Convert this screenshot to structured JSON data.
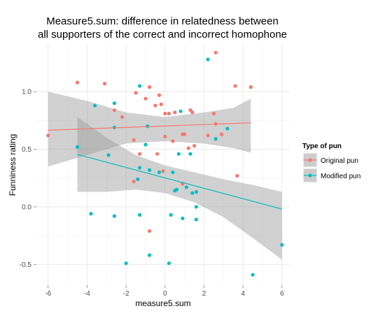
{
  "chart_data": {
    "type": "scatter",
    "title_lines": [
      "Measure5.sum: difference in relatedness between",
      "all supporters of the correct and incorrect homophone"
    ],
    "xlabel": "measure5.sum",
    "ylabel": "Funniness rating",
    "xlim": [
      -6.6,
      6.4
    ],
    "ylim": [
      -0.68,
      1.42
    ],
    "xticks": [
      -6,
      -4,
      -2,
      0,
      2,
      4,
      6
    ],
    "xtick_labels": [
      "-6",
      "-4",
      "-2",
      "0",
      "2",
      "4",
      "6"
    ],
    "yticks": [
      -0.5,
      0.0,
      0.5,
      1.0
    ],
    "ytick_labels": [
      "-0.5",
      "0.0",
      "0.5",
      "1.0"
    ],
    "grid": true,
    "legend": {
      "title": "Type of pun",
      "position": "right",
      "entries": [
        "Original pun",
        "Modified pun"
      ]
    },
    "series": [
      {
        "name": "Original pun",
        "color": "#F8766D",
        "points": [
          [
            -6.0,
            0.62
          ],
          [
            -4.5,
            1.08
          ],
          [
            -3.1,
            1.07
          ],
          [
            -2.6,
            0.84
          ],
          [
            -2.2,
            0.78
          ],
          [
            -1.6,
            0.58
          ],
          [
            -1.5,
            0.99
          ],
          [
            -1.3,
            0.46
          ],
          [
            -1.0,
            0.94
          ],
          [
            -0.8,
            1.04
          ],
          [
            -0.5,
            0.88
          ],
          [
            -0.3,
            0.97
          ],
          [
            -0.2,
            0.89
          ],
          [
            -0.4,
            0.46
          ],
          [
            0.0,
            0.61
          ],
          [
            0.2,
            0.81
          ],
          [
            0.4,
            0.57
          ],
          [
            0.5,
            0.82
          ],
          [
            0.9,
            0.63
          ],
          [
            1.0,
            0.63
          ],
          [
            1.2,
            0.51
          ],
          [
            1.3,
            0.84
          ],
          [
            1.4,
            0.82
          ],
          [
            1.5,
            0.53
          ],
          [
            2.2,
            0.62
          ],
          [
            2.5,
            0.81
          ],
          [
            2.6,
            0.72
          ],
          [
            2.9,
            0.63
          ],
          [
            3.6,
            1.05
          ],
          [
            3.7,
            0.27
          ],
          [
            4.4,
            1.04
          ],
          [
            2.6,
            1.34
          ],
          [
            0.9,
            0.2
          ],
          [
            -1.6,
            0.22
          ],
          [
            -0.8,
            -0.21
          ],
          [
            0.0,
            0.81
          ],
          [
            -0.1,
            0.31
          ]
        ],
        "fit": {
          "x": [
            -6.0,
            4.4
          ],
          "y": [
            0.665,
            0.73
          ]
        }
      },
      {
        "name": "Modified pun",
        "color": "#00BFC4",
        "points": [
          [
            -4.5,
            0.52
          ],
          [
            -3.8,
            -0.06
          ],
          [
            -3.6,
            0.88
          ],
          [
            -2.9,
            0.45
          ],
          [
            -2.6,
            0.9
          ],
          [
            -2.6,
            -0.08
          ],
          [
            -2.6,
            0.69
          ],
          [
            -2.0,
            -0.49
          ],
          [
            -1.3,
            -0.07
          ],
          [
            -1.3,
            1.05
          ],
          [
            -1.3,
            0.34
          ],
          [
            -1.0,
            0.54
          ],
          [
            -0.9,
            0.7
          ],
          [
            -0.8,
            -0.42
          ],
          [
            -0.8,
            0.32
          ],
          [
            -0.3,
            0.3
          ],
          [
            0.2,
            -0.49
          ],
          [
            0.3,
            -0.07
          ],
          [
            0.4,
            0.3
          ],
          [
            0.5,
            0.14
          ],
          [
            0.6,
            0.15
          ],
          [
            0.8,
            0.83
          ],
          [
            0.9,
            -0.1
          ],
          [
            1.1,
            0.17
          ],
          [
            1.3,
            0.46
          ],
          [
            1.4,
            0.12
          ],
          [
            1.6,
            0.0
          ],
          [
            1.6,
            0.13
          ],
          [
            1.6,
            -0.11
          ],
          [
            2.2,
            1.28
          ],
          [
            2.6,
            0.59
          ],
          [
            3.2,
            0.68
          ],
          [
            4.5,
            -0.59
          ],
          [
            6.0,
            -0.33
          ],
          [
            -1.4,
            0.24
          ],
          [
            0.7,
            0.46
          ]
        ],
        "fit": {
          "x": [
            -4.5,
            6.0
          ],
          "y": [
            0.455,
            -0.02
          ]
        }
      }
    ],
    "confidence_bands": [
      {
        "series": "Original pun",
        "x": [
          -6.0,
          -4.0,
          -2.0,
          0.0,
          2.0,
          3.5,
          4.4
        ],
        "upper": [
          1.0,
          0.92,
          0.82,
          0.78,
          0.82,
          0.86,
          0.94
        ],
        "lower": [
          0.35,
          0.45,
          0.55,
          0.57,
          0.55,
          0.51,
          0.47
        ]
      },
      {
        "series": "Modified pun",
        "x": [
          -4.5,
          -3.0,
          -1.5,
          0.0,
          1.5,
          3.0,
          4.5,
          6.0
        ],
        "upper": [
          0.78,
          0.6,
          0.45,
          0.36,
          0.3,
          0.24,
          0.19,
          0.13
        ],
        "lower": [
          0.13,
          0.13,
          0.15,
          0.12,
          0.04,
          -0.09,
          -0.27,
          -0.46
        ]
      }
    ]
  }
}
